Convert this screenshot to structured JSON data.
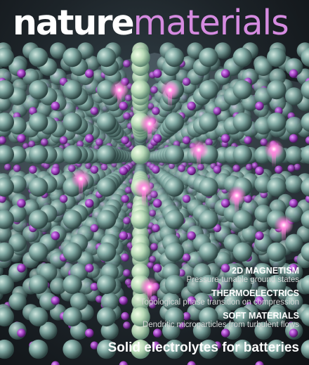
{
  "masthead": {
    "word1": "nature",
    "word2": "materials"
  },
  "coverlines": [
    {
      "heading": "2D MAGNETISM",
      "detail": "Pressure-tunable ground states"
    },
    {
      "heading": "THERMOELECTRICS",
      "detail": "Topological phase transition on compression"
    },
    {
      "heading": "SOFT MATERIALS",
      "detail": "Dendritic microparticles from turbulent flows"
    }
  ],
  "lead_story": "Solid electrolytes for batteries",
  "colors": {
    "masthead_accent": "#d58be0",
    "atom_teal": "#7fa8a2",
    "ion_purple": "#a040c0",
    "glow_pink": "#ff6ad0"
  }
}
